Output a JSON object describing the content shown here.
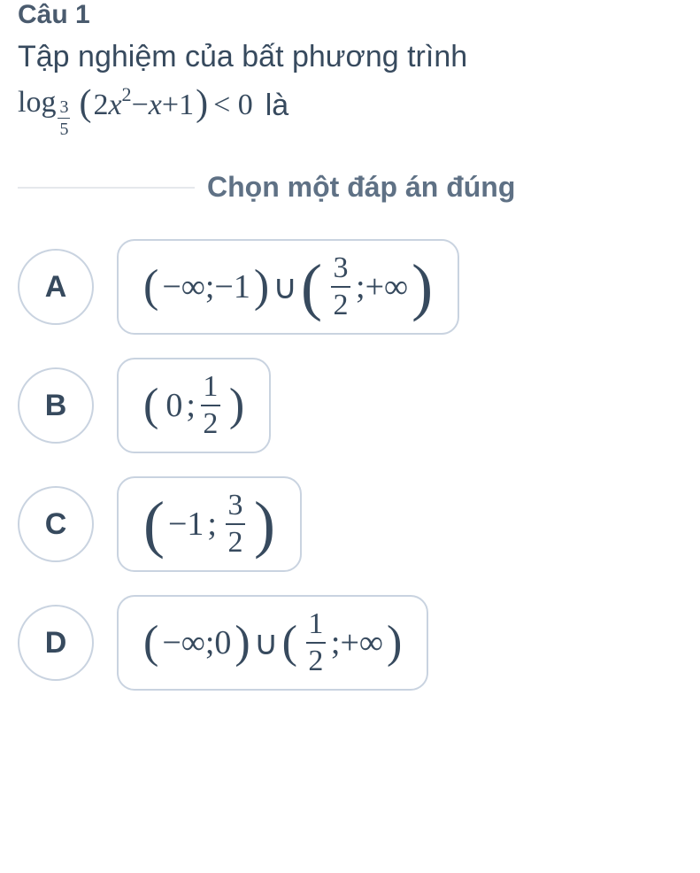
{
  "question": {
    "header": "Câu 1",
    "prompt": "Tập nghiệm của bất phương trình",
    "expr": {
      "log_text": "log",
      "base_num": "3",
      "base_den": "5",
      "lparen": "(",
      "body_a": "2",
      "body_var": "x",
      "body_exp": "2",
      "body_mid": " − ",
      "body_var2": "x",
      "body_plus": " + ",
      "body_one": "1",
      "rparen": ")",
      "cmp": " < 0",
      "suffix": " là"
    }
  },
  "instruction": "Chọn một đáp án đúng",
  "options": {
    "A": {
      "letter": "A",
      "seg1_l": "(",
      "seg1_neg": " − ",
      "seg1_inf": "∞",
      "seg1_semi": " ; ",
      "seg1_neg2": "− ",
      "seg1_one": "1",
      "seg1_r": ")",
      "union": " ∪ ",
      "seg2_l": "(",
      "seg2_frac_num": "3",
      "seg2_frac_den": "2",
      "seg2_semi": " ; ",
      "seg2_plus": "+ ",
      "seg2_inf": "∞",
      "seg2_r": ")"
    },
    "B": {
      "letter": "B",
      "l": "(",
      "zero": "0",
      "semi": ";",
      "frac_num": "1",
      "frac_den": "2",
      "r": ")"
    },
    "C": {
      "letter": "C",
      "l": "(",
      "neg": " − ",
      "one": "1",
      "semi": ";",
      "frac_num": "3",
      "frac_den": "2",
      "r": ")"
    },
    "D": {
      "letter": "D",
      "seg1_l": "(",
      "seg1_neg": " − ",
      "seg1_inf": "∞",
      "seg1_semi": " ;",
      "seg1_zero": "0",
      "seg1_r": ")",
      "union": " ∪ ",
      "seg2_l": "(",
      "seg2_frac_num": "1",
      "seg2_frac_den": "2",
      "seg2_semi": " ; ",
      "seg2_plus": "+ ",
      "seg2_inf": "∞",
      "seg2_r": ")"
    }
  },
  "colors": {
    "text": "#374a5e",
    "muted": "#5f7185",
    "border": "#c9d3e0",
    "divider": "#e5e8ec",
    "bg": "#ffffff"
  }
}
